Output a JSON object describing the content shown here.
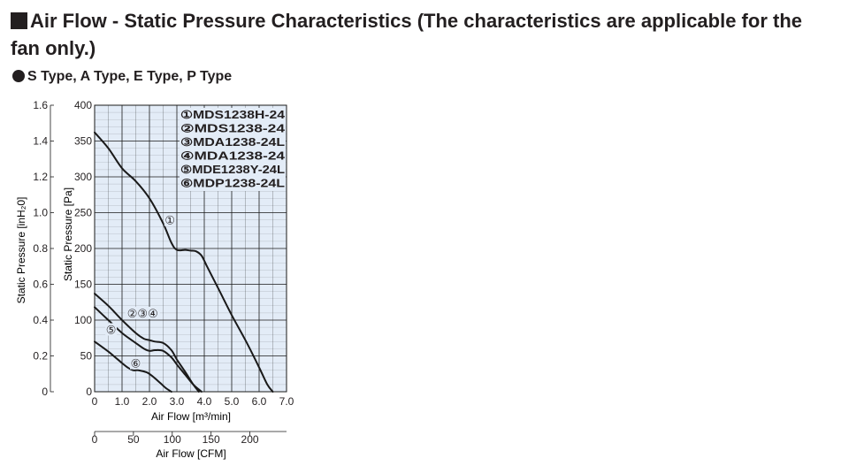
{
  "header": {
    "title": "Air Flow - Static Pressure Characteristics (The characteristics are applicable for the fan only.)",
    "subtitle": "S Type, A Type, E Type, P Type"
  },
  "colors": {
    "plot_background": "#e3ecf7",
    "grid": "#1a1a1a",
    "curve": "#1a1a1a",
    "text": "#231f20"
  },
  "chart_data": {
    "type": "line",
    "title": "",
    "xlabel": "Air Flow [m³/min]",
    "xlim": [
      0,
      7.0
    ],
    "x_ticks": [
      "0",
      "1.0",
      "2.0",
      "3.0",
      "4.0",
      "5.0",
      "6.0",
      "7.0"
    ],
    "ylabel": "Static Pressure [Pa]",
    "ylim": [
      0,
      400
    ],
    "y_ticks": [
      "0",
      "50",
      "100",
      "150",
      "200",
      "250",
      "300",
      "350",
      "400"
    ],
    "ylabel_secondary": "Static Pressure [inH₂0]",
    "y_secondary_ticks": [
      "0",
      "0.2",
      "0.4",
      "0.6",
      "0.8",
      "1.0",
      "1.2",
      "1.4",
      "1.6"
    ],
    "xlabel_secondary": "Air Flow [CFM]",
    "x_secondary_ticks": [
      "0",
      "50",
      "100",
      "150",
      "200"
    ],
    "x_secondary_values": [
      0,
      50,
      100,
      150,
      200
    ],
    "grid": true,
    "legend": {
      "placement": "top-right",
      "entries": [
        "①MDS1238H-24",
        "②MDS1238-24",
        "③MDA1238-24L",
        "④MDA1238-24",
        "⑤MDE1238Y-24L",
        "⑥MDP1238-24L"
      ]
    },
    "curve_labels": [
      {
        "text": "①",
        "x": 2.75,
        "y": 240
      },
      {
        "text": "②③④",
        "x": 1.75,
        "y": 110
      },
      {
        "text": "⑤",
        "x": 0.6,
        "y": 87
      },
      {
        "text": "⑥",
        "x": 1.5,
        "y": 40
      }
    ],
    "series": [
      {
        "id": "1",
        "x": [
          0,
          0.5,
          1.0,
          1.5,
          2.0,
          2.5,
          2.8,
          3.0,
          3.3,
          3.5,
          3.7,
          3.9,
          4.1,
          4.5,
          5.0,
          5.5,
          6.0,
          6.3,
          6.5
        ],
        "y": [
          362,
          340,
          312,
          294,
          270,
          235,
          208,
          198,
          198,
          197,
          196,
          190,
          175,
          145,
          107,
          72,
          34,
          10,
          0
        ]
      },
      {
        "id": "2-4-a",
        "x": [
          0,
          0.5,
          1.0,
          1.5,
          1.8,
          2.0,
          2.2,
          2.5,
          2.8,
          3.0,
          3.3,
          3.6,
          3.8
        ],
        "y": [
          137,
          120,
          100,
          82,
          74,
          72,
          70,
          68,
          58,
          45,
          28,
          10,
          0
        ]
      },
      {
        "id": "2-4-b",
        "x": [
          0,
          0.5,
          1.0,
          1.5,
          1.8,
          2.0,
          2.2,
          2.5,
          2.8,
          3.0,
          3.3,
          3.6,
          3.9
        ],
        "y": [
          118,
          100,
          82,
          68,
          60,
          57,
          58,
          57,
          48,
          38,
          24,
          10,
          0
        ]
      },
      {
        "id": "5-6",
        "x": [
          0,
          0.5,
          1.0,
          1.2,
          1.4,
          1.6,
          1.9,
          2.1,
          2.4,
          2.6,
          2.8
        ],
        "y": [
          70,
          56,
          40,
          34,
          30,
          30,
          27,
          22,
          12,
          5,
          0
        ]
      }
    ]
  }
}
